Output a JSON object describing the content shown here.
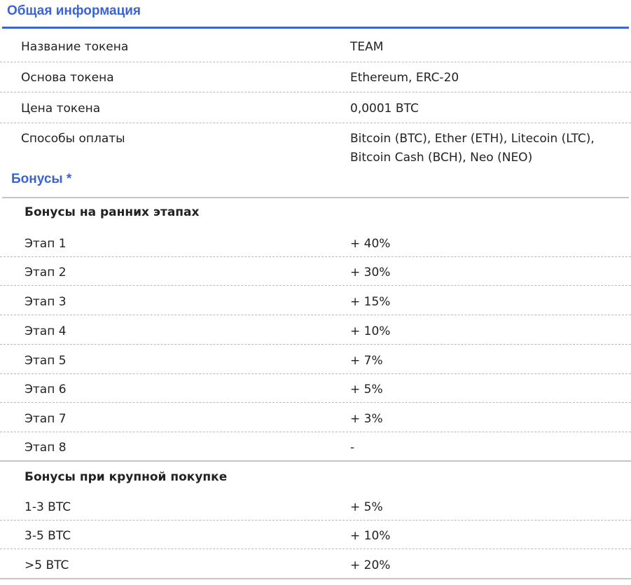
{
  "colors": {
    "accent": "#3a63d6",
    "rule": "#3a63d6"
  },
  "general": {
    "title": "Общая информация",
    "rows": [
      {
        "label": "Название токена",
        "value": "TEAM"
      },
      {
        "label": "Основа токена",
        "value": "Ethereum, ERC-20"
      },
      {
        "label": "Цена токена",
        "value": "0,0001 BTC"
      },
      {
        "label": "Способы оплаты",
        "value_line1": "Bitcoin (BTC), Ether (ETH), Litecoin (LTC),",
        "value_line2": "Bitcoin Cash (BCH), Neo (NEO)"
      }
    ]
  },
  "bonuses": {
    "title": "Бонусы *",
    "early": {
      "title": "Бонусы на ранних этапах",
      "rows": [
        {
          "label": "Этап 1",
          "value": "+ 40%"
        },
        {
          "label": "Этап 2",
          "value": "+ 30%"
        },
        {
          "label": "Этап 3",
          "value": "+ 15%"
        },
        {
          "label": "Этап 4",
          "value": "+ 10%"
        },
        {
          "label": "Этап 5",
          "value": "+ 7%"
        },
        {
          "label": "Этап 6",
          "value": "+ 5%"
        },
        {
          "label": "Этап 7",
          "value": "+ 3%"
        },
        {
          "label": "Этап 8",
          "value": "-"
        }
      ]
    },
    "large": {
      "title": "Бонусы при крупной покупке",
      "rows": [
        {
          "label": "1-3 BTC",
          "value": "+ 5%"
        },
        {
          "label": "3-5 BTC",
          "value": "+ 10%"
        },
        {
          "label": ">5 BTC",
          "value": "+ 20%"
        }
      ]
    }
  }
}
